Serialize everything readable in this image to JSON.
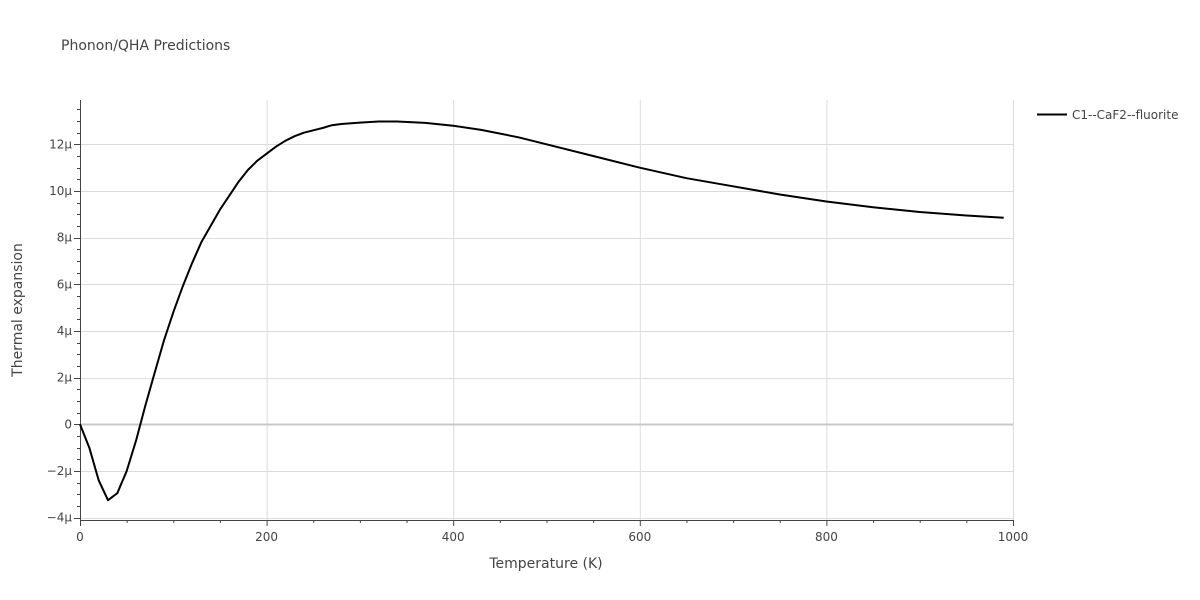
{
  "chart_data": {
    "type": "line",
    "title": "Phonon/QHA Predictions",
    "xlabel": "Temperature (K)",
    "ylabel": "Thermal expansion",
    "xlim": [
      0,
      1000
    ],
    "ylim": [
      -4.1e-06,
      1.39e-05
    ],
    "grid": true,
    "legend_position": "top-right",
    "x_ticks": [
      {
        "value": 0,
        "label": "0"
      },
      {
        "value": 200,
        "label": "200"
      },
      {
        "value": 400,
        "label": "400"
      },
      {
        "value": 600,
        "label": "600"
      },
      {
        "value": 800,
        "label": "800"
      },
      {
        "value": 1000,
        "label": "1000"
      }
    ],
    "y_ticks": [
      {
        "value": -4e-06,
        "label": "−4μ"
      },
      {
        "value": -2e-06,
        "label": "−2μ"
      },
      {
        "value": 0,
        "label": "0"
      },
      {
        "value": 2e-06,
        "label": "2μ"
      },
      {
        "value": 4e-06,
        "label": "4μ"
      },
      {
        "value": 6e-06,
        "label": "6μ"
      },
      {
        "value": 8e-06,
        "label": "8μ"
      },
      {
        "value": 1e-05,
        "label": "10μ"
      },
      {
        "value": 1.2e-05,
        "label": "12μ"
      }
    ],
    "series": [
      {
        "name": "C1--CaF2--fluorite",
        "color": "#000000",
        "x": [
          0,
          10,
          20,
          30,
          40,
          50,
          60,
          70,
          80,
          90,
          100,
          110,
          120,
          130,
          140,
          150,
          160,
          170,
          180,
          190,
          200,
          210,
          220,
          230,
          240,
          250,
          260,
          270,
          280,
          300,
          320,
          340,
          370,
          400,
          430,
          470,
          500,
          550,
          600,
          650,
          700,
          750,
          800,
          850,
          900,
          950,
          990
        ],
        "y": [
          0,
          -1e-06,
          -2.4e-06,
          -3.25e-06,
          -2.95e-06,
          -2e-06,
          -7e-07,
          8e-07,
          2.2e-06,
          3.6e-06,
          4.8e-06,
          5.9e-06,
          6.9e-06,
          7.8e-06,
          8.5e-06,
          9.2e-06,
          9.8e-06,
          1.04e-05,
          1.09e-05,
          1.13e-05,
          1.16e-05,
          1.19e-05,
          1.215e-05,
          1.235e-05,
          1.25e-05,
          1.26e-05,
          1.27e-05,
          1.282e-05,
          1.287e-05,
          1.293e-05,
          1.298e-05,
          1.298e-05,
          1.292e-05,
          1.28e-05,
          1.262e-05,
          1.23e-05,
          1.2e-05,
          1.15e-05,
          1.1e-05,
          1.055e-05,
          1.02e-05,
          9.85e-06,
          9.55e-06,
          9.3e-06,
          9.1e-06,
          8.95e-06,
          8.85e-06
        ]
      }
    ]
  }
}
